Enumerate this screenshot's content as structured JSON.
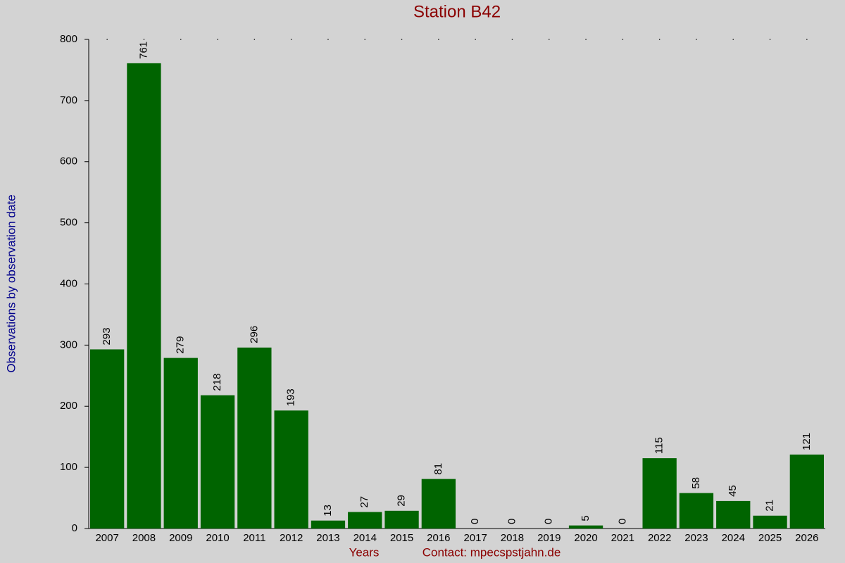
{
  "chart_data": {
    "type": "bar",
    "title": "Station B42",
    "y_label": "Observations by observation date",
    "x_label": "Years",
    "annotation": "Contact: mpecspstjahn.de",
    "categories": [
      "2007",
      "2008",
      "2009",
      "2010",
      "2011",
      "2012",
      "2013",
      "2014",
      "2015",
      "2016",
      "2017",
      "2018",
      "2019",
      "2020",
      "2021",
      "2022",
      "2023",
      "2024",
      "2025",
      "2026"
    ],
    "values": [
      293,
      761,
      279,
      218,
      296,
      193,
      13,
      27,
      29,
      81,
      0,
      0,
      0,
      5,
      0,
      115,
      58,
      45,
      21,
      121
    ],
    "color": "#006400",
    "ylim": [
      0,
      800
    ],
    "yticks": [
      0,
      100,
      200,
      300,
      400,
      500,
      600,
      700,
      800
    ]
  }
}
